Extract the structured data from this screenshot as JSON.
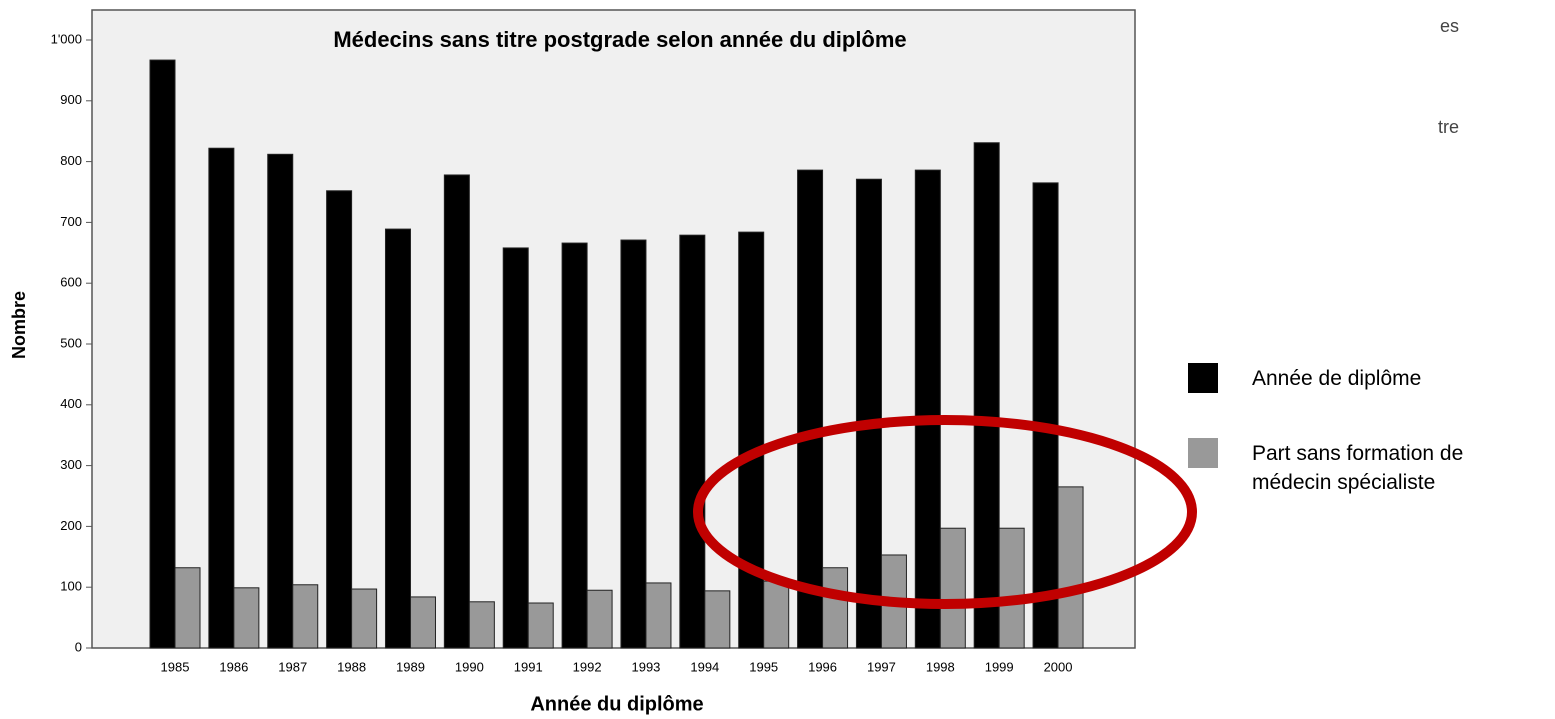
{
  "chart_data": {
    "type": "bar",
    "title": "Médecins sans titre postgrade selon année du diplôme",
    "x_label": "Année du diplôme",
    "y_label": "Nombre",
    "categories": [
      "1985",
      "1986",
      "1987",
      "1988",
      "1989",
      "1990",
      "1991",
      "1992",
      "1993",
      "1994",
      "1995",
      "1996",
      "1997",
      "1998",
      "1999",
      "2000"
    ],
    "series": [
      {
        "name": "Année de diplôme",
        "color": "#000000",
        "values": [
          967,
          822,
          812,
          752,
          689,
          778,
          658,
          666,
          671,
          679,
          684,
          786,
          771,
          786,
          831,
          765
        ]
      },
      {
        "name": "Part sans formation de médecin spécialiste",
        "color": "#999999",
        "values": [
          132,
          99,
          104,
          97,
          84,
          76,
          74,
          95,
          107,
          94,
          110,
          132,
          153,
          197,
          197,
          265
        ]
      }
    ],
    "ylim": [
      0,
      1000
    ],
    "yticks": [
      0,
      100,
      200,
      300,
      400,
      500,
      600,
      700,
      800,
      900,
      {
        "value": 1000,
        "label": "1'000"
      }
    ],
    "cropped_texts": [
      "es",
      "tre"
    ]
  }
}
